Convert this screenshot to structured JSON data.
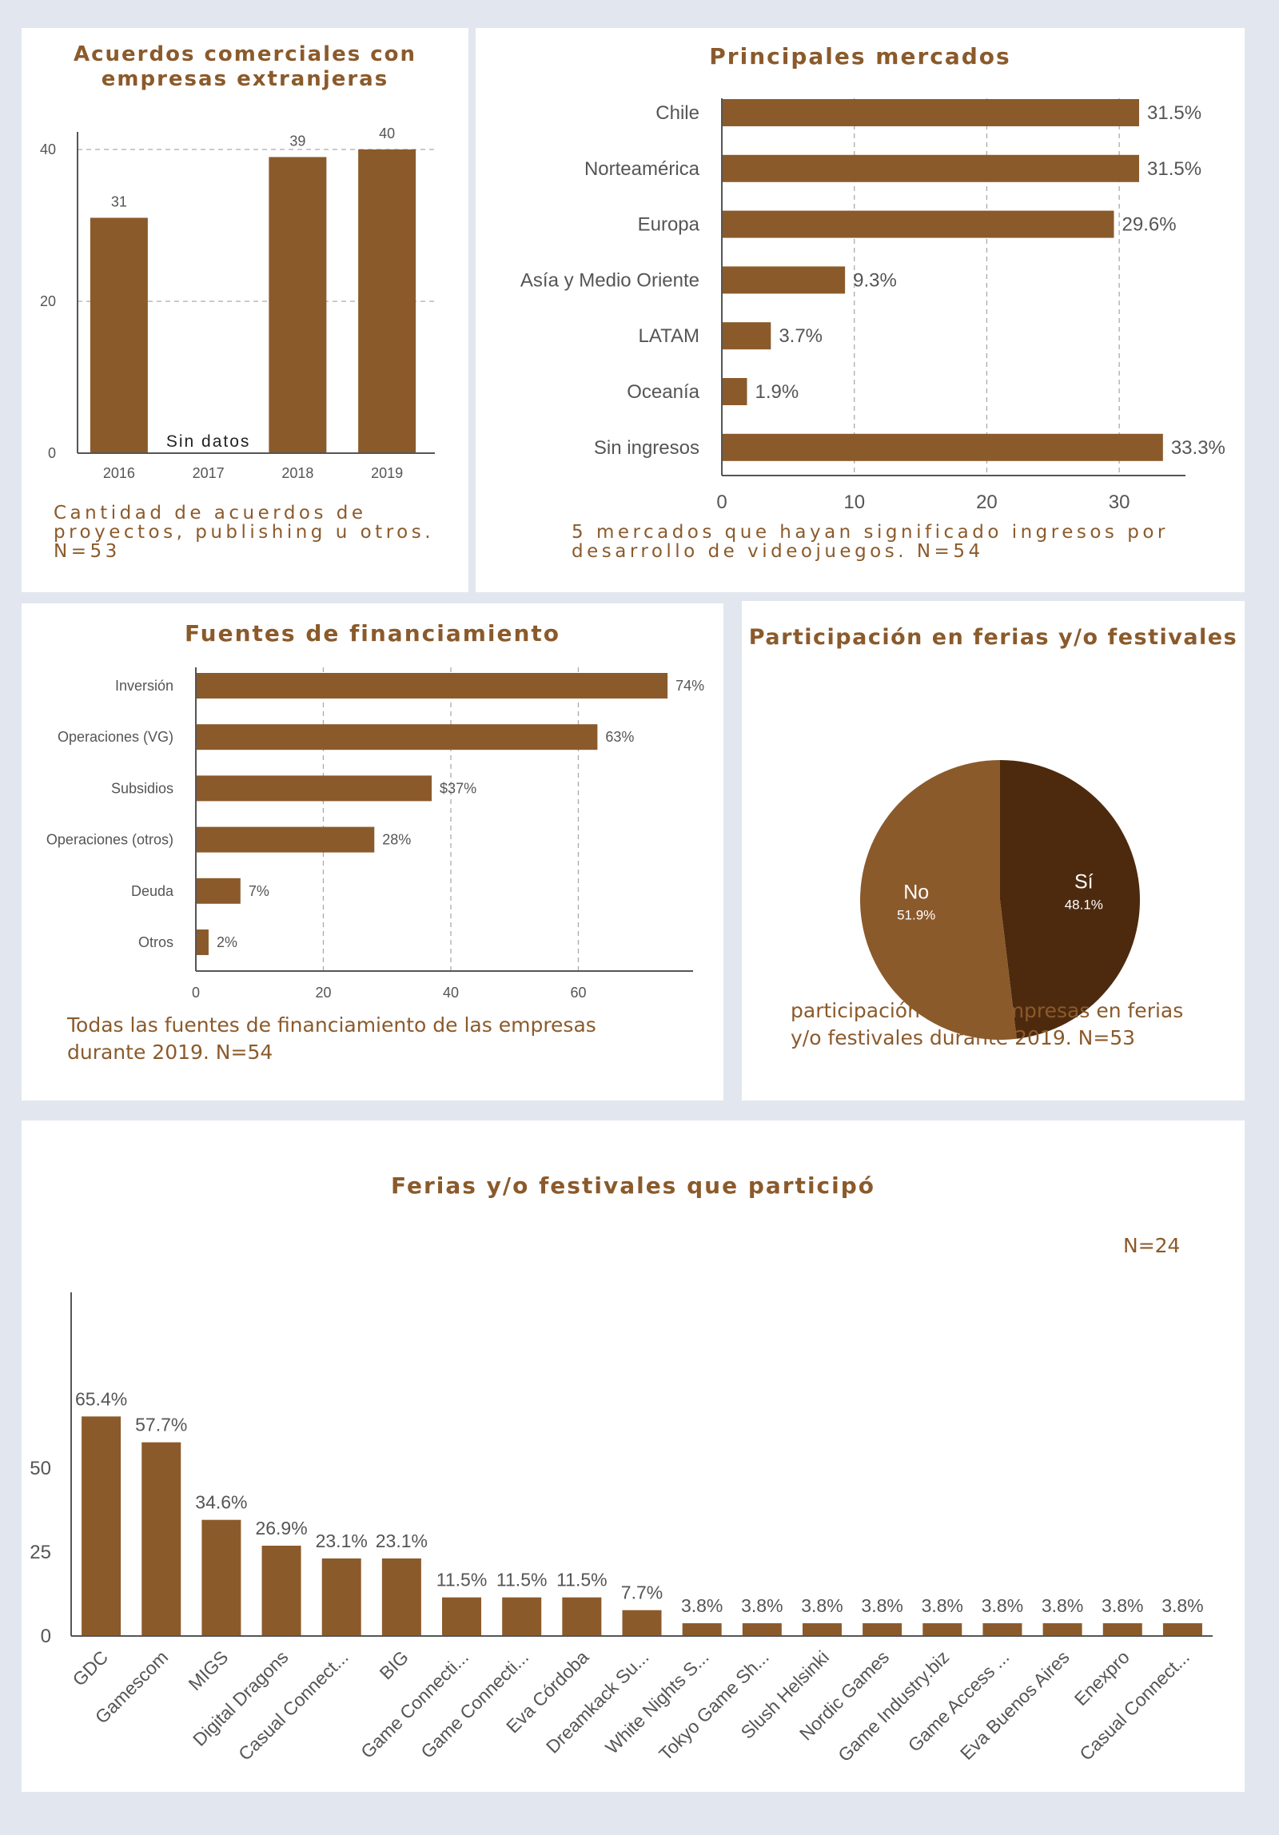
{
  "colors": {
    "bar": "#8b5a2b",
    "pie_dark": "#4d2a0e",
    "axis": "#555555",
    "grid": "#aaaaaa",
    "title": "#8b5a2b",
    "background": "#e2e7ef"
  },
  "chart_data": [
    {
      "id": "agreements",
      "type": "bar",
      "title": "Acuerdos comerciales con empresas extranjeras",
      "categories": [
        "2016",
        "2017",
        "2018",
        "2019"
      ],
      "values": [
        31,
        null,
        39,
        40
      ],
      "value_labels": [
        "31",
        "",
        "39",
        "40"
      ],
      "missing_label": "Sin datos",
      "yticks": [
        0,
        20,
        40
      ],
      "ylim": [
        0,
        40
      ],
      "grid": true,
      "caption": "Cantidad de acuerdos de proyectos, publishing u otros. N=53"
    },
    {
      "id": "markets",
      "type": "bar",
      "orientation": "horizontal",
      "title": "Principales mercados",
      "categories": [
        "Chile",
        "Norteamérica",
        "Europa",
        "Asía y Medio Oriente",
        "LATAM",
        "Oceanía",
        "Sin ingresos"
      ],
      "values": [
        31.5,
        31.5,
        29.6,
        9.3,
        3.7,
        1.9,
        33.3
      ],
      "value_labels": [
        "31.5%",
        "31.5%",
        "29.6%",
        "9.3%",
        "3.7%",
        "1.9%",
        "33.3%"
      ],
      "xticks": [
        0,
        10,
        20,
        30
      ],
      "xlim": [
        0,
        35
      ],
      "grid": true,
      "caption": "5 mercados que hayan significado ingresos por desarrollo de videojuegos. N=54"
    },
    {
      "id": "funding",
      "type": "bar",
      "orientation": "horizontal",
      "title": "Fuentes de financiamiento",
      "categories": [
        "Inversión",
        "Operaciones (VG)",
        "Subsidios",
        "Operaciones (otros)",
        "Deuda",
        "Otros"
      ],
      "values": [
        74,
        63,
        37,
        28,
        7,
        2
      ],
      "value_labels": [
        "74%",
        "63%",
        "$37%",
        "28%",
        "7%",
        "2%"
      ],
      "xticks": [
        0,
        20,
        40,
        60
      ],
      "xlim": [
        0,
        78
      ],
      "grid": true,
      "caption": "Todas las fuentes de financiamiento de las empresas durante 2019. N=54"
    },
    {
      "id": "participation",
      "type": "pie",
      "title": "Participación en ferias y/o festivales",
      "slices": [
        {
          "label": "Sí",
          "value": 48.1,
          "value_label": "48.1%",
          "color": "#4d2a0e"
        },
        {
          "label": "No",
          "value": 51.9,
          "value_label": "51.9%",
          "color": "#8b5a2b"
        }
      ],
      "caption": "participación de las empresas en ferias y/o festivales durante 2019. N=53"
    },
    {
      "id": "fairs",
      "type": "bar",
      "title": "Ferias y/o festivales que participó",
      "annotation": "N=24",
      "categories": [
        "GDC",
        "Gamescom",
        "MIGS",
        "Digital Dragons",
        "Casual Connect...",
        "BIG",
        "Game Connecti...",
        "Game Connecti...",
        "Eva Córdoba",
        "Dreamkack Su...",
        "White Nights S...",
        "Tokyo Game Sh...",
        "Slush Helsinki",
        "Nordic Games",
        "Game Industry.biz",
        "Game Access ...",
        "Eva Buenos Aires",
        "Enexpro",
        "Casual Connect..."
      ],
      "values": [
        65.4,
        57.7,
        34.6,
        26.9,
        23.1,
        23.1,
        11.5,
        11.5,
        11.5,
        7.7,
        3.8,
        3.8,
        3.8,
        3.8,
        3.8,
        3.8,
        3.8,
        3.8,
        3.8
      ],
      "value_labels": [
        "65.4%",
        "57.7%",
        "34.6%",
        "26.9%",
        "23.1%",
        "23.1%",
        "11.5%",
        "11.5%",
        "11.5%",
        "7.7%",
        "3.8%",
        "3.8%",
        "3.8%",
        "3.8%",
        "3.8%",
        "3.8%",
        "3.8%",
        "3.8%",
        "3.8%"
      ],
      "yticks": [
        0,
        25,
        50
      ],
      "ylim": [
        0,
        70
      ],
      "grid": false
    }
  ]
}
